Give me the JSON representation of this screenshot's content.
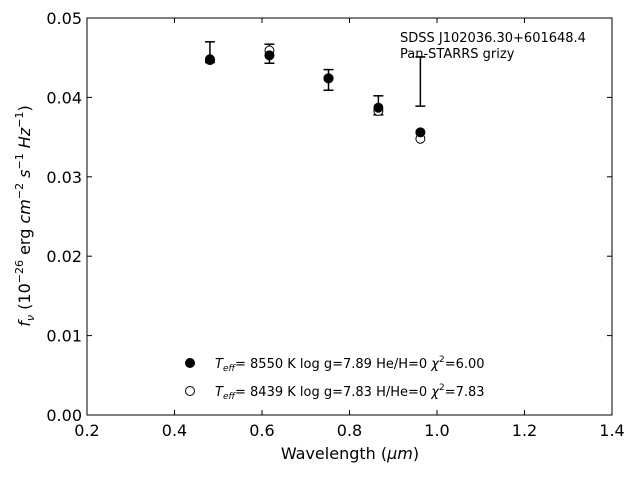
{
  "chart_data": {
    "type": "scatter",
    "title": "",
    "annotation": {
      "object": "SDSS J102036.30+601648.4",
      "survey": "Pan-STARRS grizy"
    },
    "xlabel": {
      "text": "Wavelength (",
      "unit": "μm",
      "close": ")"
    },
    "ylabel": {
      "symbol": "f",
      "symbol_sub": "ν",
      "open": " (10",
      "exp": "−26",
      "mid1": " erg ",
      "cm": "cm",
      "cm_exp": "−2",
      "s": " s",
      "s_exp": "−1",
      "hz": " Hz",
      "hz_exp": "−1",
      "close": ")"
    },
    "xlim": [
      0.2,
      1.4
    ],
    "ylim": [
      0.0,
      0.05
    ],
    "xticks": [
      0.2,
      0.4,
      0.6,
      0.8,
      1.0,
      1.2,
      1.4
    ],
    "xtick_labels": [
      "0.2",
      "0.4",
      "0.6",
      "0.8",
      "1.0",
      "1.2",
      "1.4"
    ],
    "yticks": [
      0.0,
      0.01,
      0.02,
      0.03,
      0.04,
      0.05
    ],
    "ytick_labels": [
      "0.00",
      "0.01",
      "0.02",
      "0.03",
      "0.04",
      "0.05"
    ],
    "observed": {
      "x": [
        0.481,
        0.617,
        0.752,
        0.866,
        0.962
      ],
      "y": [
        0.0457,
        0.0455,
        0.0422,
        0.039,
        0.042
      ],
      "yerr": [
        0.0013,
        0.0012,
        0.0013,
        0.0012,
        0.0031
      ]
    },
    "series": [
      {
        "marker": "filled-circle",
        "x": [
          0.481,
          0.617,
          0.752,
          0.866,
          0.962
        ],
        "y": [
          0.0448,
          0.0453,
          0.0424,
          0.0387,
          0.0356
        ],
        "label": {
          "t": "T",
          "t_sub": "eff",
          "params": "=  8550 K  log g=7.89  He/H=0  ",
          "chi": "χ",
          "chi_exp": "2",
          "chi_val": "=6.00"
        }
      },
      {
        "marker": "open-circle",
        "x": [
          0.481,
          0.617,
          0.752,
          0.866,
          0.962
        ],
        "y": [
          0.0447,
          0.0459,
          0.0424,
          0.0383,
          0.0348
        ],
        "label": {
          "t": "T",
          "t_sub": "eff",
          "params": "=  8439 K  log g=7.83  H/He=0  ",
          "chi": "χ",
          "chi_exp": "2",
          "chi_val": "=7.83"
        }
      }
    ],
    "legend_location": "lower-center",
    "grid": false
  }
}
